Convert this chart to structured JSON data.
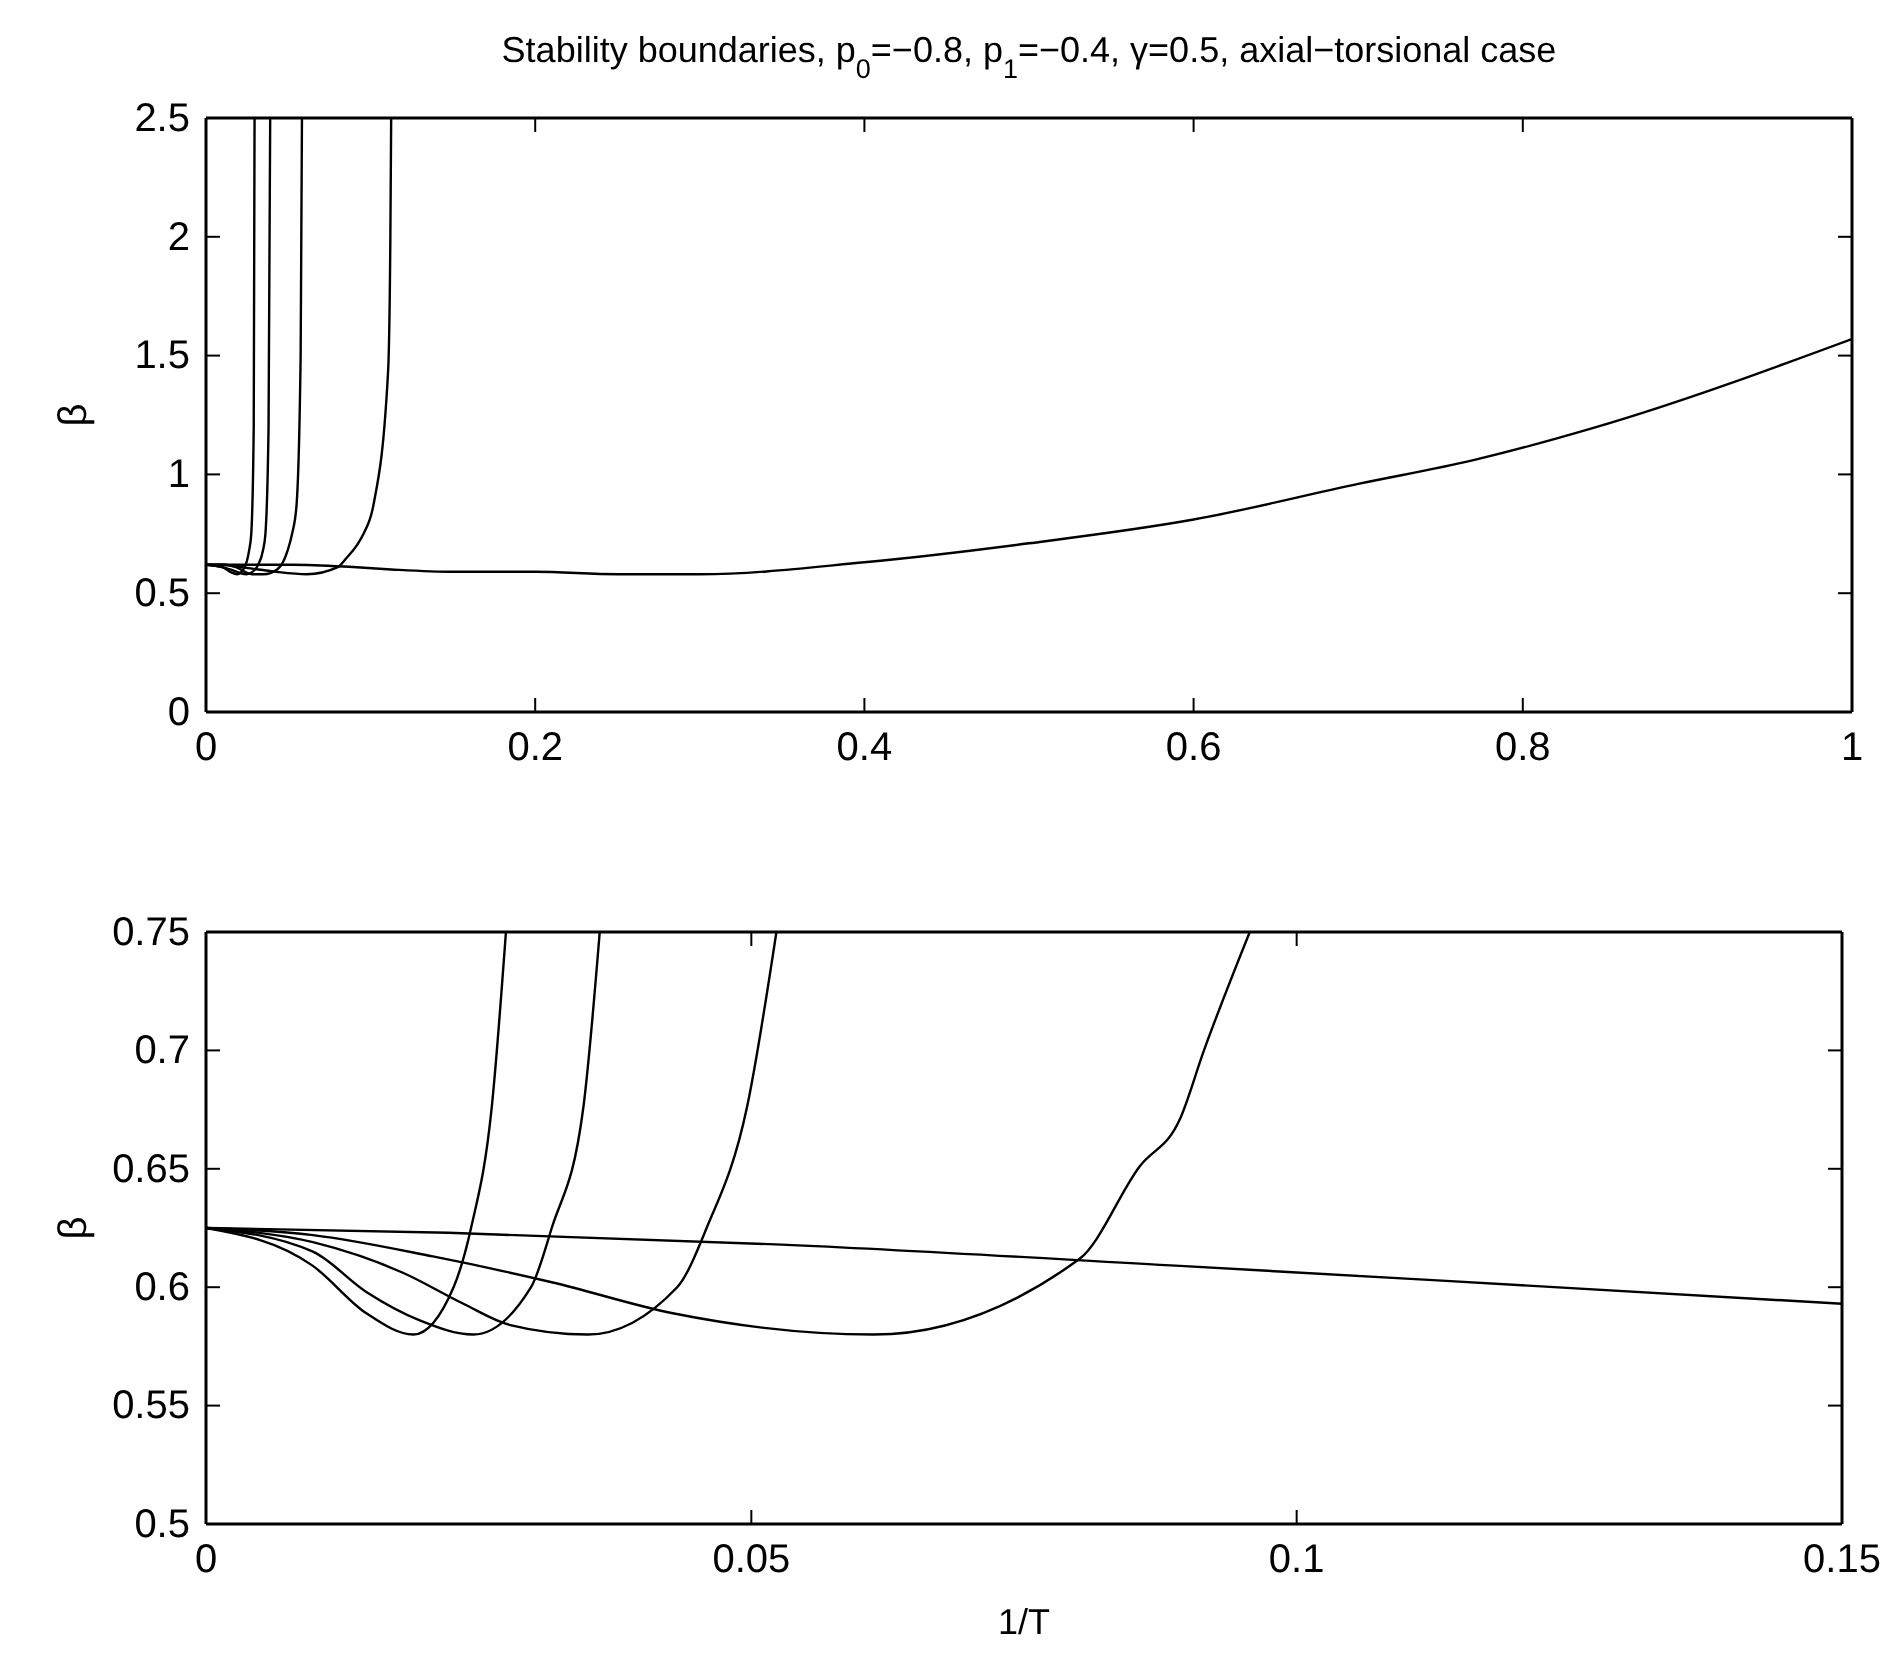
{
  "chart_data": [
    {
      "type": "line",
      "title": "Stability boundaries, p$_{0}$=−0.8, p$_{1}$=−0.4, γ=0.5, axial−torsional case",
      "ylabel": "β",
      "xlim": [
        0,
        1
      ],
      "ylim": [
        0,
        2.5
      ],
      "xticks": [
        0,
        0.2,
        0.4,
        0.6,
        0.8,
        1
      ],
      "yticks": [
        0,
        0.5,
        1,
        1.5,
        2,
        2.5
      ],
      "grid": false,
      "series": [
        {
          "color": "#000000",
          "x": [
            0,
            0.0098,
            0.0147,
            0.019,
            0.0227,
            0.0262,
            0.0275,
            0.029,
            0.0295
          ],
          "values": [
            0.62,
            0.61,
            0.59,
            0.58,
            0.6,
            0.68,
            0.75,
            1.2,
            2.5
          ]
        },
        {
          "color": "#000000",
          "x": [
            0,
            0.0098,
            0.0147,
            0.0245,
            0.0298,
            0.0317,
            0.0346,
            0.0361,
            0.038,
            0.039
          ],
          "values": [
            0.62,
            0.61,
            0.6,
            0.58,
            0.6,
            0.62,
            0.68,
            0.75,
            1.2,
            2.5
          ]
        },
        {
          "color": "#000000",
          "x": [
            0,
            0.0098,
            0.0181,
            0.0236,
            0.0279,
            0.035,
            0.0432,
            0.0459,
            0.0496,
            0.0523,
            0.055,
            0.0575,
            0.0583
          ],
          "values": [
            0.62,
            0.62,
            0.61,
            0.59,
            0.58,
            0.58,
            0.6,
            0.62,
            0.68,
            0.75,
            0.87,
            1.5,
            2.5
          ]
        },
        {
          "color": "#000000",
          "x": [
            0,
            0.0098,
            0.0208,
            0.0318,
            0.0428,
            0.0612,
            0.0801,
            0.0856,
            0.0915,
            0.0957,
            0.1017,
            0.1106,
            0.112,
            0.1125
          ],
          "values": [
            0.62,
            0.62,
            0.61,
            0.6,
            0.59,
            0.58,
            0.61,
            0.65,
            0.7,
            0.75,
            0.87,
            1.43,
            1.99,
            2.5
          ]
        },
        {
          "color": "#000000",
          "x": [
            0,
            0.0222,
            0.0528,
            0.0893,
            0.1125,
            0.15,
            0.2,
            0.25,
            0.3,
            0.4,
            0.5,
            0.6,
            0.7,
            0.77,
            0.845,
            1
          ],
          "values": [
            0.62,
            0.62,
            0.62,
            0.61,
            0.6,
            0.59,
            0.59,
            0.58,
            0.58,
            0.63,
            0.71,
            0.81,
            0.96,
            1.06,
            1.2,
            1.57
          ]
        }
      ]
    },
    {
      "type": "line",
      "xlabel": "1/T",
      "ylabel": "β",
      "xlim": [
        0,
        0.15
      ],
      "ylim": [
        0.5,
        0.75
      ],
      "xticks": [
        0,
        0.05,
        0.1,
        0.15
      ],
      "yticks": [
        0.5,
        0.55,
        0.6,
        0.65,
        0.7,
        0.75
      ],
      "grid": false,
      "series": [
        {
          "color": "#000000",
          "x": [
            0,
            0.0098,
            0.0147,
            0.019,
            0.0227,
            0.0243,
            0.0262,
            0.0275
          ],
          "values": [
            0.625,
            0.609,
            0.589,
            0.58,
            0.6,
            0.625,
            0.676,
            0.75
          ]
        },
        {
          "color": "#000000",
          "x": [
            0,
            0.0098,
            0.0147,
            0.0196,
            0.0245,
            0.0298,
            0.0317,
            0.0346,
            0.0361
          ],
          "values": [
            0.625,
            0.615,
            0.598,
            0.586,
            0.58,
            0.6,
            0.625,
            0.676,
            0.75
          ]
        },
        {
          "color": "#000000",
          "x": [
            0,
            0.0098,
            0.0181,
            0.0236,
            0.0279,
            0.035,
            0.0432,
            0.0459,
            0.0496,
            0.0523
          ],
          "values": [
            0.625,
            0.619,
            0.606,
            0.593,
            0.584,
            0.58,
            0.6,
            0.625,
            0.676,
            0.75
          ]
        },
        {
          "color": "#000000",
          "x": [
            0,
            0.0098,
            0.0208,
            0.0318,
            0.0428,
            0.0612,
            0.0801,
            0.0856,
            0.0893,
            0.0915,
            0.0957
          ],
          "values": [
            0.625,
            0.622,
            0.613,
            0.602,
            0.589,
            0.58,
            0.612,
            0.651,
            0.671,
            0.7,
            0.75
          ]
        },
        {
          "color": "#000000",
          "x": [
            0,
            0.0222,
            0.0528,
            0.0893,
            0.1125,
            0.15
          ],
          "values": [
            0.625,
            0.623,
            0.618,
            0.609,
            0.603,
            0.593
          ]
        }
      ]
    }
  ]
}
